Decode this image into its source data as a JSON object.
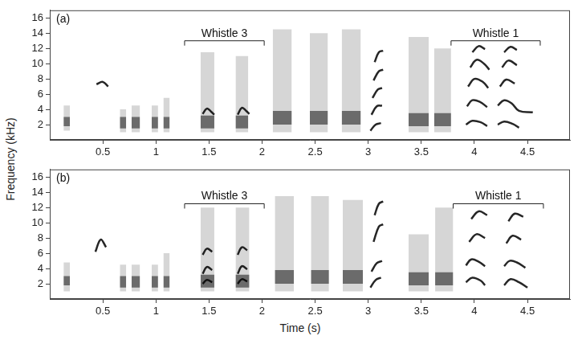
{
  "shared": {
    "xlabel": "Time (s)",
    "ylabel": "Frequency (kHz)"
  },
  "chart_data": [
    {
      "type": "spectrogram",
      "label": "(a)",
      "xlim": [
        0,
        4.9
      ],
      "xticks": [
        0.5,
        1,
        1.5,
        2,
        2.5,
        3,
        3.5,
        4,
        4.5
      ],
      "ylim": [
        0,
        17
      ],
      "yticks": [
        2,
        4,
        6,
        8,
        10,
        12,
        14,
        16
      ],
      "grid": false,
      "color": "#000000",
      "noise": [
        {
          "t": [
            0.13,
            0.19
          ],
          "f": [
            1.2,
            4.5
          ],
          "core": [
            1.8,
            3
          ]
        },
        {
          "t": [
            0.66,
            0.72
          ],
          "f": [
            1,
            4
          ],
          "core": [
            1.5,
            3
          ]
        },
        {
          "t": [
            0.77,
            0.85
          ],
          "f": [
            1,
            4.5
          ],
          "core": [
            1.5,
            3
          ]
        },
        {
          "t": [
            0.96,
            1.02
          ],
          "f": [
            1,
            4.5
          ],
          "core": [
            1.5,
            3
          ]
        },
        {
          "t": [
            1.07,
            1.13
          ],
          "f": [
            1,
            5.5
          ],
          "core": [
            1.5,
            3
          ]
        },
        {
          "t": [
            1.42,
            1.55
          ],
          "f": [
            1,
            11.5
          ],
          "core": [
            1.5,
            3.2
          ]
        },
        {
          "t": [
            1.75,
            1.87
          ],
          "f": [
            1,
            11
          ],
          "core": [
            1.5,
            3.2
          ]
        },
        {
          "t": [
            2.1,
            2.28
          ],
          "f": [
            1,
            14.5
          ],
          "core": [
            2,
            3.8
          ]
        },
        {
          "t": [
            2.45,
            2.62
          ],
          "f": [
            1,
            14
          ],
          "core": [
            2,
            3.8
          ]
        },
        {
          "t": [
            2.75,
            2.93
          ],
          "f": [
            1,
            14.5
          ],
          "core": [
            2,
            3.8
          ]
        },
        {
          "t": [
            3.38,
            3.57
          ],
          "f": [
            1,
            13.5
          ],
          "core": [
            1.8,
            3.5
          ]
        },
        {
          "t": [
            3.62,
            3.78
          ],
          "f": [
            1,
            12
          ],
          "core": [
            1.8,
            3.5
          ]
        }
      ],
      "whistles": [
        {
          "t": [
            0.44,
            0.5,
            0.55
          ],
          "f": [
            7.3,
            7.6,
            7.0
          ]
        },
        {
          "t": [
            1.44,
            1.48,
            1.52,
            1.55
          ],
          "f": [
            3.4,
            4.1,
            3.7,
            3.3
          ]
        },
        {
          "t": [
            1.77,
            1.81,
            1.85,
            1.88
          ],
          "f": [
            3.3,
            4.2,
            3.8,
            3.4
          ]
        },
        {
          "t": [
            3.02,
            3.07,
            3.12
          ],
          "f": [
            1.2,
            2.0,
            2.2
          ]
        },
        {
          "t": [
            3.03,
            3.08,
            3.13
          ],
          "f": [
            3.3,
            4.4,
            4.5
          ]
        },
        {
          "t": [
            3.04,
            3.09,
            3.13
          ],
          "f": [
            5.5,
            6.6,
            6.8
          ]
        },
        {
          "t": [
            3.05,
            3.1,
            3.14
          ],
          "f": [
            7.8,
            9.0,
            9.2
          ]
        },
        {
          "t": [
            3.06,
            3.1,
            3.14
          ],
          "f": [
            10.2,
            11.5,
            11.7
          ]
        },
        {
          "t": [
            3.93,
            3.98,
            4.05,
            4.12
          ],
          "f": [
            4.4,
            5.2,
            5.0,
            4.3
          ]
        },
        {
          "t": [
            3.92,
            3.98,
            4.06,
            4.12
          ],
          "f": [
            2.0,
            2.5,
            2.3,
            1.8
          ]
        },
        {
          "t": [
            3.94,
            4.0,
            4.08,
            4.13
          ],
          "f": [
            7.0,
            8.0,
            7.6,
            6.8
          ]
        },
        {
          "t": [
            3.96,
            4.02,
            4.09,
            4.14
          ],
          "f": [
            9.5,
            10.5,
            10.0,
            9.2
          ]
        },
        {
          "t": [
            3.98,
            4.04,
            4.1
          ],
          "f": [
            11.5,
            12.3,
            11.9
          ]
        },
        {
          "t": [
            4.22,
            4.28,
            4.35,
            4.42,
            4.55
          ],
          "f": [
            4.5,
            5.2,
            4.8,
            3.8,
            3.6
          ]
        },
        {
          "t": [
            4.22,
            4.28,
            4.36,
            4.42
          ],
          "f": [
            2.0,
            2.4,
            2.1,
            1.6
          ]
        },
        {
          "t": [
            4.24,
            4.3,
            4.38
          ],
          "f": [
            7.0,
            7.9,
            7.4
          ]
        },
        {
          "t": [
            4.26,
            4.32,
            4.4
          ],
          "f": [
            9.5,
            10.4,
            9.8
          ]
        },
        {
          "t": [
            4.28,
            4.34,
            4.4
          ],
          "f": [
            11.5,
            12.2,
            11.8
          ]
        }
      ],
      "brackets": [
        {
          "label": "Whistle 3",
          "t": [
            1.27,
            2.02
          ],
          "f": 13
        },
        {
          "label": "Whistle 1",
          "t": [
            3.78,
            4.62
          ],
          "f": 13
        }
      ]
    },
    {
      "type": "spectrogram",
      "label": "(b)",
      "xlim": [
        0,
        4.9
      ],
      "xticks": [
        0.5,
        1,
        1.5,
        2,
        2.5,
        3,
        3.5,
        4,
        4.5
      ],
      "ylim": [
        0,
        17
      ],
      "yticks": [
        2,
        4,
        6,
        8,
        10,
        12,
        14,
        16
      ],
      "grid": false,
      "color": "#000000",
      "noise": [
        {
          "t": [
            0.13,
            0.19
          ],
          "f": [
            1,
            4.8
          ],
          "core": [
            1.8,
            3
          ]
        },
        {
          "t": [
            0.66,
            0.72
          ],
          "f": [
            1,
            4.5
          ],
          "core": [
            1.5,
            3
          ]
        },
        {
          "t": [
            0.77,
            0.85
          ],
          "f": [
            1,
            4.5
          ],
          "core": [
            1.5,
            3
          ]
        },
        {
          "t": [
            0.96,
            1.02
          ],
          "f": [
            1,
            4.5
          ],
          "core": [
            1.5,
            3
          ]
        },
        {
          "t": [
            1.07,
            1.13
          ],
          "f": [
            1,
            6
          ],
          "core": [
            1.5,
            3
          ]
        },
        {
          "t": [
            1.42,
            1.55
          ],
          "f": [
            1,
            12
          ],
          "core": [
            1.5,
            3.2
          ]
        },
        {
          "t": [
            1.75,
            1.88
          ],
          "f": [
            1,
            12
          ],
          "core": [
            1.5,
            3.2
          ]
        },
        {
          "t": [
            2.12,
            2.3
          ],
          "f": [
            1,
            13.5
          ],
          "core": [
            2,
            3.8
          ]
        },
        {
          "t": [
            2.46,
            2.63
          ],
          "f": [
            1,
            13.5
          ],
          "core": [
            2,
            3.8
          ]
        },
        {
          "t": [
            2.76,
            2.95
          ],
          "f": [
            1,
            13
          ],
          "core": [
            2,
            3.8
          ]
        },
        {
          "t": [
            3.38,
            3.57
          ],
          "f": [
            1,
            8.5
          ],
          "core": [
            1.8,
            3.5
          ]
        },
        {
          "t": [
            3.63,
            3.8
          ],
          "f": [
            1,
            12
          ],
          "core": [
            1.8,
            3.5
          ]
        }
      ],
      "whistles": [
        {
          "t": [
            0.43,
            0.48,
            0.53
          ],
          "f": [
            6.2,
            7.8,
            6.8
          ]
        },
        {
          "t": [
            1.44,
            1.48,
            1.53
          ],
          "f": [
            3.3,
            4.2,
            3.8
          ]
        },
        {
          "t": [
            1.44,
            1.48,
            1.53
          ],
          "f": [
            2.0,
            2.5,
            2.2
          ]
        },
        {
          "t": [
            1.44,
            1.48,
            1.53
          ],
          "f": [
            5.8,
            6.6,
            6.2
          ]
        },
        {
          "t": [
            1.77,
            1.81,
            1.86
          ],
          "f": [
            3.3,
            4.3,
            3.9
          ]
        },
        {
          "t": [
            1.77,
            1.81,
            1.86
          ],
          "f": [
            2.0,
            2.6,
            2.3
          ]
        },
        {
          "t": [
            1.77,
            1.81,
            1.86
          ],
          "f": [
            5.8,
            6.8,
            6.4
          ]
        },
        {
          "t": [
            3.02,
            3.07,
            3.12
          ],
          "f": [
            1.5,
            2.5,
            2.8
          ]
        },
        {
          "t": [
            3.03,
            3.08,
            3.13
          ],
          "f": [
            3.6,
            4.7,
            5.0
          ]
        },
        {
          "t": [
            3.05,
            3.1,
            3.14
          ],
          "f": [
            7.5,
            9.5,
            9.8
          ]
        },
        {
          "t": [
            3.06,
            3.1,
            3.14
          ],
          "f": [
            11,
            12.5,
            12.8
          ]
        },
        {
          "t": [
            3.92,
            3.97,
            4.04,
            4.1
          ],
          "f": [
            4.4,
            5.2,
            4.9,
            4.3
          ]
        },
        {
          "t": [
            3.92,
            3.98,
            4.06,
            4.1
          ],
          "f": [
            2.2,
            2.8,
            2.4,
            1.8
          ]
        },
        {
          "t": [
            3.95,
            4.02,
            4.1
          ],
          "f": [
            7.5,
            8.5,
            8.0
          ]
        },
        {
          "t": [
            3.97,
            4.04,
            4.12
          ],
          "f": [
            10.5,
            11.5,
            11.0
          ]
        },
        {
          "t": [
            4.28,
            4.33,
            4.4,
            4.48
          ],
          "f": [
            4.3,
            5.0,
            4.8,
            4.1
          ]
        },
        {
          "t": [
            4.28,
            4.34,
            4.42,
            4.5
          ],
          "f": [
            1.8,
            2.6,
            2.2,
            1.5
          ]
        },
        {
          "t": [
            4.3,
            4.36,
            4.44
          ],
          "f": [
            7.3,
            8.3,
            7.8
          ]
        },
        {
          "t": [
            4.32,
            4.38,
            4.46
          ],
          "f": [
            10.2,
            11.2,
            10.8
          ]
        }
      ],
      "brackets": [
        {
          "label": "Whistle 3",
          "t": [
            1.27,
            2.02
          ],
          "f": 12.5
        },
        {
          "label": "Whistle 1",
          "t": [
            3.8,
            4.65
          ],
          "f": 12.5
        }
      ]
    }
  ]
}
